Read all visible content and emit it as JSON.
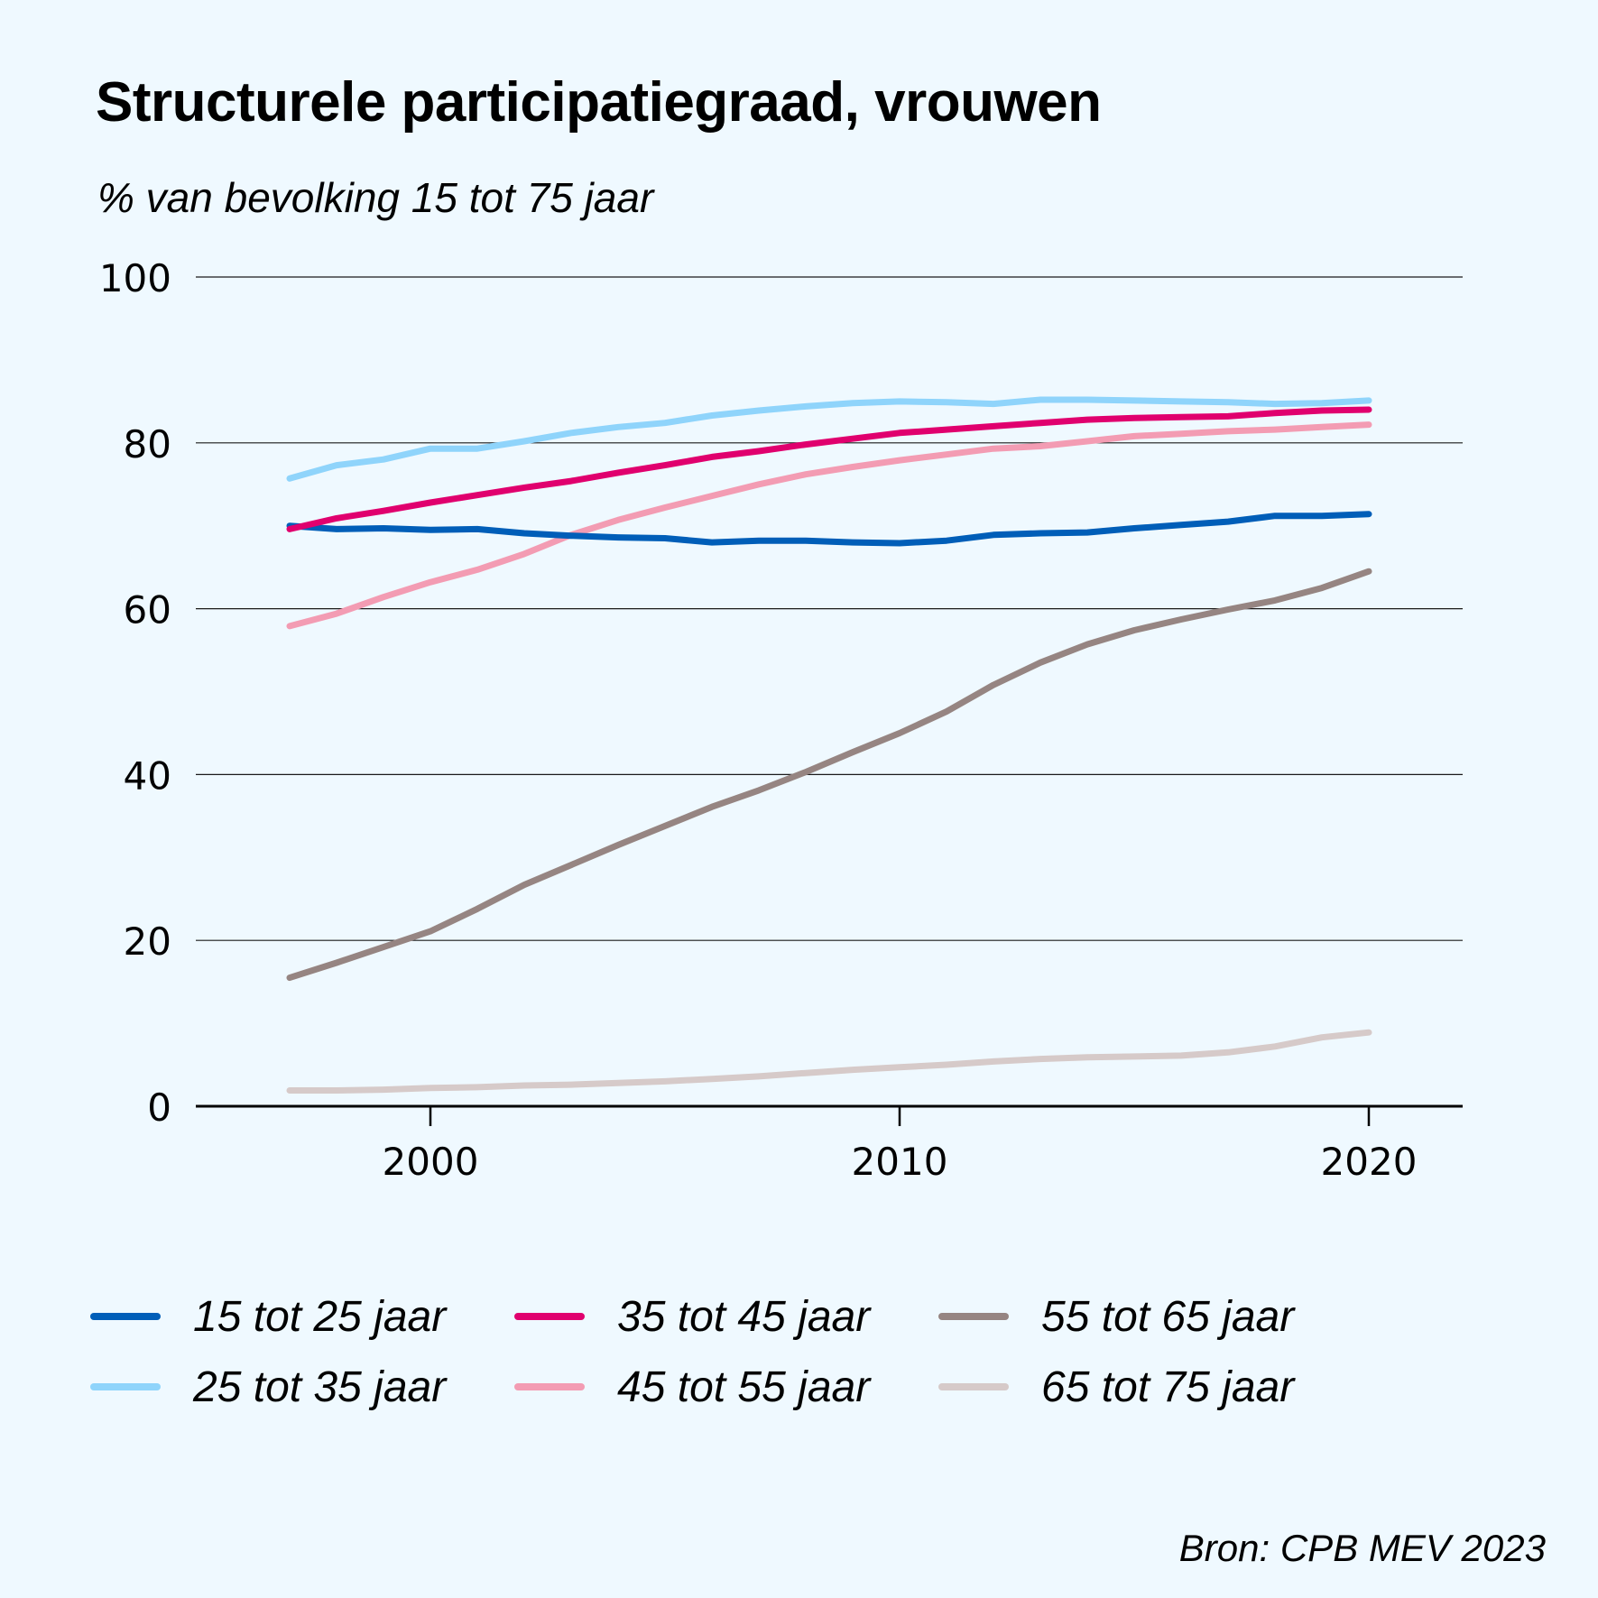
{
  "title": "Structurele participatiegraad, vrouwen",
  "subtitle": "% van bevolking 15 tot 75 jaar",
  "source": "Bron: CPB MEV 2023",
  "chart_data": {
    "type": "line",
    "title": "Structurele participatiegraad, vrouwen",
    "ylabel": "% van bevolking 15 tot 75 jaar",
    "xlabel": "",
    "xlim": [
      1995,
      2022
    ],
    "ylim": [
      0,
      100
    ],
    "xticks": [
      2000,
      2010,
      2020
    ],
    "xtick_labels": [
      "2000",
      "2010",
      "2020"
    ],
    "yticks": [
      0,
      20,
      40,
      60,
      80,
      100
    ],
    "ytick_labels": [
      "0",
      "20",
      "40",
      "60",
      "80",
      "100"
    ],
    "grid": "horizontal",
    "legend_position": "bottom",
    "x": [
      1997,
      1998,
      1999,
      2000,
      2001,
      2002,
      2003,
      2004,
      2005,
      2006,
      2007,
      2008,
      2009,
      2010,
      2011,
      2012,
      2013,
      2014,
      2015,
      2016,
      2017,
      2018,
      2019,
      2020
    ],
    "series": [
      {
        "name": "15 tot 25 jaar",
        "color": "#005eb8",
        "values": [
          70.0,
          69.6,
          69.7,
          69.5,
          69.6,
          69.1,
          68.8,
          68.6,
          68.5,
          68.0,
          68.2,
          68.2,
          68.0,
          67.9,
          68.2,
          68.9,
          69.1,
          69.2,
          69.7,
          70.1,
          70.5,
          71.2,
          71.2,
          71.4
        ]
      },
      {
        "name": "25 tot 35 jaar",
        "color": "#8fd4fb",
        "values": [
          75.7,
          77.3,
          78.0,
          79.3,
          79.3,
          80.2,
          81.2,
          81.9,
          82.4,
          83.3,
          83.9,
          84.4,
          84.8,
          85.0,
          84.9,
          84.7,
          85.2,
          85.2,
          85.1,
          85.0,
          84.9,
          84.7,
          84.8,
          85.1
        ]
      },
      {
        "name": "35 tot 45 jaar",
        "color": "#e0006e",
        "values": [
          69.6,
          70.9,
          71.8,
          72.8,
          73.7,
          74.6,
          75.4,
          76.4,
          77.3,
          78.3,
          79.0,
          79.8,
          80.5,
          81.2,
          81.6,
          82.0,
          82.4,
          82.8,
          83.0,
          83.1,
          83.2,
          83.6,
          83.9,
          84.0
        ]
      },
      {
        "name": "45 tot 55 jaar",
        "color": "#f39cb3",
        "values": [
          57.9,
          59.4,
          61.4,
          63.2,
          64.7,
          66.6,
          68.9,
          70.7,
          72.2,
          73.6,
          75.0,
          76.2,
          77.1,
          77.9,
          78.6,
          79.3,
          79.6,
          80.2,
          80.8,
          81.1,
          81.4,
          81.6,
          81.9,
          82.2
        ]
      },
      {
        "name": "55 tot 65 jaar",
        "color": "#968582",
        "values": [
          15.5,
          17.3,
          19.2,
          21.1,
          23.8,
          26.7,
          29.1,
          31.5,
          33.8,
          36.1,
          38.1,
          40.3,
          42.7,
          45.0,
          47.6,
          50.8,
          53.5,
          55.7,
          57.4,
          58.7,
          59.9,
          61.0,
          62.5,
          64.5
        ]
      },
      {
        "name": "65 tot 75 jaar",
        "color": "#d6cac9",
        "values": [
          1.9,
          1.9,
          2.0,
          2.2,
          2.3,
          2.5,
          2.6,
          2.8,
          3.0,
          3.3,
          3.6,
          4.0,
          4.4,
          4.7,
          5.0,
          5.4,
          5.7,
          5.9,
          6.0,
          6.1,
          6.5,
          7.2,
          8.3,
          8.9
        ]
      }
    ]
  }
}
